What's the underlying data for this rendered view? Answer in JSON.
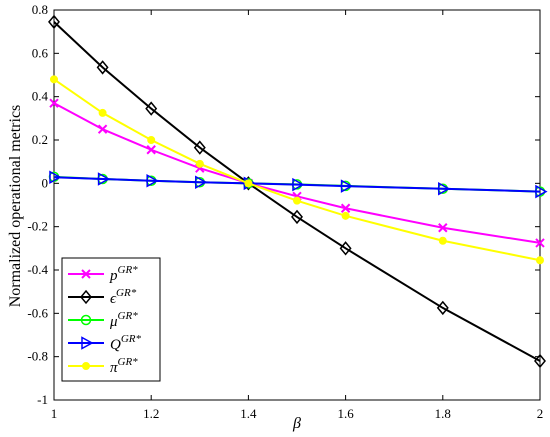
{
  "chart_data": {
    "type": "line",
    "xlabel": "β",
    "ylabel": "Normalized operational metrics",
    "xlim": [
      1,
      2
    ],
    "ylim": [
      -1,
      0.8
    ],
    "x": [
      1,
      1.1,
      1.2,
      1.3,
      1.4,
      1.5,
      1.6,
      1.8,
      2.0
    ],
    "x_ticks": [
      1,
      1.2,
      1.4,
      1.6,
      1.8,
      2
    ],
    "x_tick_labels": [
      "1",
      "1.2",
      "1.4",
      "1.6",
      "1.8",
      "2"
    ],
    "y_ticks": [
      -1,
      -0.8,
      -0.6,
      -0.4,
      -0.2,
      0,
      0.2,
      0.4,
      0.6,
      0.8
    ],
    "y_tick_labels": [
      "-1",
      "-0.8",
      "-0.6",
      "-0.4",
      "-0.2",
      "0",
      "0.2",
      "0.4",
      "0.6",
      "0.8"
    ],
    "grid": false,
    "legend_position": "bottom-left",
    "series": [
      {
        "name": "p",
        "sup": "GR*",
        "color": "#ff00ff",
        "marker": "x",
        "values": [
          0.37,
          0.25,
          0.155,
          0.07,
          0.0,
          -0.06,
          -0.115,
          -0.205,
          -0.275
        ]
      },
      {
        "name": "ϵ",
        "sup": "GR*",
        "color": "#000000",
        "marker": "diamond",
        "values": [
          0.745,
          0.535,
          0.345,
          0.165,
          0.0,
          -0.155,
          -0.3,
          -0.575,
          -0.82
        ]
      },
      {
        "name": "μ",
        "sup": "GR*",
        "color": "#00ff00",
        "marker": "circle",
        "values": [
          0.03,
          0.02,
          0.012,
          0.005,
          0.0,
          -0.005,
          -0.012,
          -0.025,
          -0.038
        ]
      },
      {
        "name": "Q",
        "sup": "GR*",
        "color": "#0000ff",
        "marker": "triangle-right",
        "values": [
          0.028,
          0.02,
          0.012,
          0.005,
          0.0,
          -0.006,
          -0.013,
          -0.025,
          -0.038
        ]
      },
      {
        "name": "π",
        "sup": "GR*",
        "color": "#ffff00",
        "marker": "dot",
        "values": [
          0.48,
          0.325,
          0.2,
          0.09,
          0.0,
          -0.08,
          -0.15,
          -0.265,
          -0.355
        ]
      }
    ]
  }
}
